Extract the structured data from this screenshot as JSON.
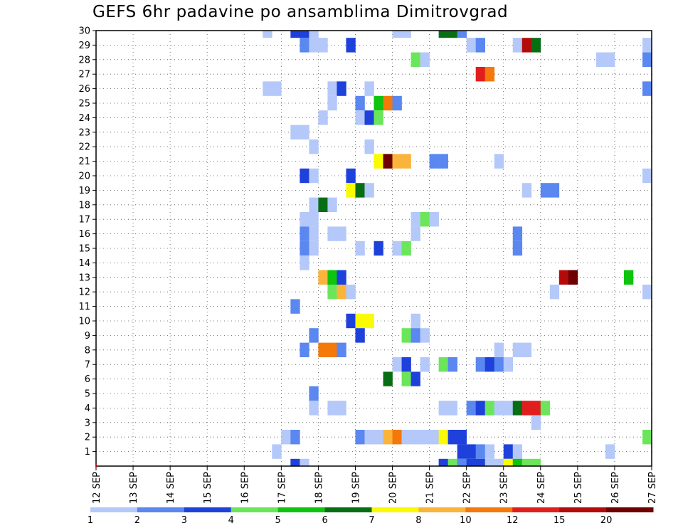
{
  "chart_data": {
    "type": "heatmap",
    "title": "GEFS 6hr padavine po ansamblima Dimitrovgrad",
    "xlabel": "",
    "ylabel": "",
    "x_tick_labels": [
      "12 SEP",
      "13 SEP",
      "14 SEP",
      "15 SEP",
      "16 SEP",
      "17 SEP",
      "18 SEP",
      "19 SEP",
      "20 SEP",
      "21 SEP",
      "22 SEP",
      "23 SEP",
      "24 SEP",
      "25 SEP",
      "26 SEP",
      "27 SEP"
    ],
    "y_tick_labels": [
      "1",
      "2",
      "3",
      "4",
      "5",
      "6",
      "7",
      "8",
      "9",
      "10",
      "11",
      "12",
      "13",
      "14",
      "15",
      "16",
      "17",
      "18",
      "19",
      "20",
      "21",
      "22",
      "23",
      "24",
      "25",
      "26",
      "27",
      "28",
      "29",
      "30"
    ],
    "x_steps_per_day": 4,
    "x_range_steps": [
      0,
      60
    ],
    "y_range": [
      0,
      30
    ],
    "grid": true,
    "color_levels": [
      {
        "label": "1",
        "color": "#b4c8fa"
      },
      {
        "label": "2",
        "color": "#5a87f0"
      },
      {
        "label": "3",
        "color": "#1e41dc"
      },
      {
        "label": "4",
        "color": "#6be65a"
      },
      {
        "label": "5",
        "color": "#0ec40e"
      },
      {
        "label": "6",
        "color": "#086e14"
      },
      {
        "label": "7",
        "color": "#fafa00"
      },
      {
        "label": "8",
        "color": "#fab43c"
      },
      {
        "label": "10",
        "color": "#f5780a"
      },
      {
        "label": "12",
        "color": "#e11e1e"
      },
      {
        "label": "15",
        "color": "#b40a0a"
      },
      {
        "label": "20",
        "color": "#6e0000"
      }
    ],
    "cells_format": "[member, forecast_step_6h_from_12SEP_00Z, color_level_index]",
    "cells": [
      [
        30,
        18,
        0
      ],
      [
        30,
        21,
        2
      ],
      [
        30,
        22,
        2
      ],
      [
        30,
        23,
        0
      ],
      [
        30,
        32,
        0
      ],
      [
        30,
        33,
        0
      ],
      [
        30,
        37,
        5
      ],
      [
        30,
        38,
        5
      ],
      [
        30,
        39,
        1
      ],
      [
        29,
        22,
        1
      ],
      [
        29,
        23,
        0
      ],
      [
        29,
        24,
        0
      ],
      [
        29,
        27,
        2
      ],
      [
        29,
        40,
        0
      ],
      [
        29,
        41,
        1
      ],
      [
        29,
        45,
        0
      ],
      [
        29,
        46,
        10
      ],
      [
        29,
        47,
        5
      ],
      [
        29,
        59,
        0
      ],
      [
        28,
        34,
        3
      ],
      [
        28,
        35,
        0
      ],
      [
        28,
        54,
        0
      ],
      [
        28,
        55,
        0
      ],
      [
        28,
        59,
        1
      ],
      [
        27,
        41,
        9
      ],
      [
        27,
        42,
        8
      ],
      [
        26,
        18,
        0
      ],
      [
        26,
        19,
        0
      ],
      [
        26,
        25,
        0
      ],
      [
        26,
        26,
        2
      ],
      [
        26,
        29,
        0
      ],
      [
        26,
        59,
        1
      ],
      [
        25,
        25,
        0
      ],
      [
        25,
        28,
        1
      ],
      [
        25,
        30,
        4
      ],
      [
        25,
        31,
        8
      ],
      [
        25,
        32,
        1
      ],
      [
        24,
        24,
        0
      ],
      [
        24,
        28,
        0
      ],
      [
        24,
        29,
        2
      ],
      [
        24,
        30,
        3
      ],
      [
        23,
        21,
        0
      ],
      [
        23,
        22,
        0
      ],
      [
        22,
        23,
        0
      ],
      [
        22,
        29,
        0
      ],
      [
        21,
        30,
        6
      ],
      [
        21,
        31,
        11
      ],
      [
        21,
        32,
        7
      ],
      [
        21,
        33,
        7
      ],
      [
        21,
        36,
        1
      ],
      [
        21,
        37,
        1
      ],
      [
        21,
        43,
        0
      ],
      [
        20,
        22,
        2
      ],
      [
        20,
        23,
        0
      ],
      [
        20,
        27,
        2
      ],
      [
        20,
        59,
        0
      ],
      [
        19,
        27,
        6
      ],
      [
        19,
        28,
        5
      ],
      [
        19,
        29,
        0
      ],
      [
        19,
        46,
        0
      ],
      [
        19,
        48,
        1
      ],
      [
        19,
        49,
        1
      ],
      [
        18,
        23,
        0
      ],
      [
        18,
        24,
        5
      ],
      [
        18,
        25,
        0
      ],
      [
        17,
        22,
        0
      ],
      [
        17,
        23,
        0
      ],
      [
        17,
        34,
        0
      ],
      [
        17,
        35,
        3
      ],
      [
        17,
        36,
        0
      ],
      [
        16,
        22,
        1
      ],
      [
        16,
        23,
        0
      ],
      [
        16,
        25,
        0
      ],
      [
        16,
        26,
        0
      ],
      [
        16,
        34,
        0
      ],
      [
        16,
        45,
        1
      ],
      [
        15,
        22,
        1
      ],
      [
        15,
        23,
        0
      ],
      [
        15,
        28,
        0
      ],
      [
        15,
        30,
        2
      ],
      [
        15,
        32,
        0
      ],
      [
        15,
        33,
        3
      ],
      [
        15,
        45,
        1
      ],
      [
        14,
        22,
        0
      ],
      [
        13,
        24,
        7
      ],
      [
        13,
        25,
        4
      ],
      [
        13,
        26,
        2
      ],
      [
        13,
        50,
        10
      ],
      [
        13,
        51,
        11
      ],
      [
        13,
        57,
        4
      ],
      [
        12,
        25,
        3
      ],
      [
        12,
        26,
        7
      ],
      [
        12,
        27,
        0
      ],
      [
        12,
        49,
        0
      ],
      [
        12,
        59,
        0
      ],
      [
        11,
        21,
        1
      ],
      [
        10,
        27,
        2
      ],
      [
        10,
        28,
        6
      ],
      [
        10,
        29,
        6
      ],
      [
        10,
        34,
        0
      ],
      [
        9,
        23,
        1
      ],
      [
        9,
        28,
        2
      ],
      [
        9,
        33,
        3
      ],
      [
        9,
        34,
        1
      ],
      [
        9,
        35,
        0
      ],
      [
        8,
        22,
        1
      ],
      [
        8,
        24,
        8
      ],
      [
        8,
        25,
        8
      ],
      [
        8,
        26,
        1
      ],
      [
        8,
        43,
        0
      ],
      [
        8,
        45,
        0
      ],
      [
        8,
        46,
        0
      ],
      [
        7,
        32,
        0
      ],
      [
        7,
        33,
        2
      ],
      [
        7,
        35,
        0
      ],
      [
        7,
        37,
        3
      ],
      [
        7,
        38,
        1
      ],
      [
        7,
        41,
        1
      ],
      [
        7,
        42,
        2
      ],
      [
        7,
        43,
        1
      ],
      [
        7,
        44,
        0
      ],
      [
        6,
        31,
        5
      ],
      [
        6,
        33,
        3
      ],
      [
        6,
        34,
        2
      ],
      [
        5,
        23,
        1
      ],
      [
        4,
        23,
        0
      ],
      [
        4,
        25,
        0
      ],
      [
        4,
        26,
        0
      ],
      [
        4,
        37,
        0
      ],
      [
        4,
        38,
        0
      ],
      [
        4,
        40,
        1
      ],
      [
        4,
        41,
        2
      ],
      [
        4,
        42,
        3
      ],
      [
        4,
        43,
        0
      ],
      [
        4,
        44,
        0
      ],
      [
        4,
        45,
        5
      ],
      [
        4,
        46,
        9
      ],
      [
        4,
        47,
        9
      ],
      [
        4,
        48,
        3
      ],
      [
        3,
        47,
        0
      ],
      [
        2,
        20,
        0
      ],
      [
        2,
        21,
        1
      ],
      [
        2,
        28,
        1
      ],
      [
        2,
        29,
        0
      ],
      [
        2,
        30,
        0
      ],
      [
        2,
        31,
        7
      ],
      [
        2,
        32,
        8
      ],
      [
        2,
        33,
        0
      ],
      [
        2,
        34,
        0
      ],
      [
        2,
        35,
        0
      ],
      [
        2,
        36,
        0
      ],
      [
        2,
        37,
        6
      ],
      [
        2,
        38,
        2
      ],
      [
        2,
        39,
        2
      ],
      [
        2,
        59,
        3
      ],
      [
        1,
        19,
        0
      ],
      [
        1,
        39,
        2
      ],
      [
        1,
        40,
        2
      ],
      [
        1,
        41,
        1
      ],
      [
        1,
        42,
        0
      ],
      [
        1,
        44,
        2
      ],
      [
        1,
        45,
        0
      ],
      [
        1,
        55,
        0
      ],
      [
        0,
        21,
        2
      ],
      [
        0,
        22,
        0
      ],
      [
        0,
        37,
        2
      ],
      [
        0,
        38,
        3
      ],
      [
        0,
        39,
        1
      ],
      [
        0,
        40,
        2
      ],
      [
        0,
        41,
        2
      ],
      [
        0,
        42,
        0
      ],
      [
        0,
        43,
        0
      ],
      [
        0,
        44,
        6
      ],
      [
        0,
        45,
        4
      ],
      [
        0,
        46,
        3
      ],
      [
        0,
        47,
        3
      ]
    ]
  }
}
